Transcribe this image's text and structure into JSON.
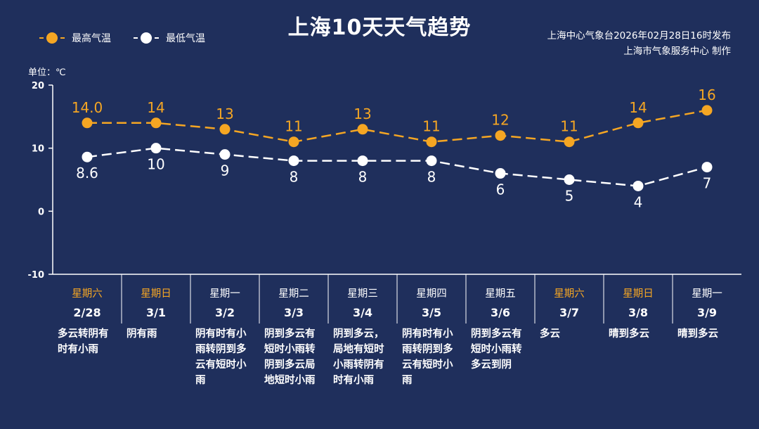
{
  "header": {
    "title": "上海10天天气趋势",
    "source_line1": "上海中心气象台2026年02月28日16时发布",
    "source_line2": "上海市气象服务中心 制作",
    "unit": "单位：℃"
  },
  "legend": [
    {
      "label": "最高气温",
      "color": "#f5a623"
    },
    {
      "label": "最低气温",
      "color": "#ffffff"
    }
  ],
  "colors": {
    "background": "#1f2f5c",
    "high": "#f5a623",
    "low": "#ffffff",
    "weekend": "#f5a623",
    "axis": "#ffffff"
  },
  "chart_data": {
    "type": "line",
    "ylim": [
      -10,
      20
    ],
    "yticks": [
      "20",
      "10",
      "0",
      "-10"
    ],
    "grid": false,
    "categories": [
      "2/28",
      "3/1",
      "3/2",
      "3/3",
      "3/4",
      "3/5",
      "3/6",
      "3/7",
      "3/8",
      "3/9"
    ],
    "series": [
      {
        "name": "最高气温",
        "values": [
          14.0,
          14,
          13,
          11,
          13,
          11,
          12,
          11,
          14,
          16
        ],
        "labels": [
          "14.0",
          "14",
          "13",
          "11",
          "13",
          "11",
          "12",
          "11",
          "14",
          "16"
        ]
      },
      {
        "name": "最低气温",
        "values": [
          8.6,
          10,
          9,
          8,
          8,
          8,
          6,
          5,
          4,
          7
        ],
        "labels": [
          "8.6",
          "10",
          "9",
          "8",
          "8",
          "8",
          "6",
          "5",
          "4",
          "7"
        ]
      }
    ]
  },
  "days": [
    {
      "weekday": "星期六",
      "date": "2/28",
      "weekend": true,
      "desc": "多云转阴有时有小雨"
    },
    {
      "weekday": "星期日",
      "date": "3/1",
      "weekend": true,
      "desc": "阴有雨"
    },
    {
      "weekday": "星期一",
      "date": "3/2",
      "weekend": false,
      "desc": "阴有时有小雨转阴到多云有短时小雨"
    },
    {
      "weekday": "星期二",
      "date": "3/3",
      "weekend": false,
      "desc": "阴到多云有短时小雨转阴到多云局地短时小雨"
    },
    {
      "weekday": "星期三",
      "date": "3/4",
      "weekend": false,
      "desc": "阴到多云，局地有短时小雨转阴有时有小雨"
    },
    {
      "weekday": "星期四",
      "date": "3/5",
      "weekend": false,
      "desc": "阴有时有小雨转阴到多云有短时小雨"
    },
    {
      "weekday": "星期五",
      "date": "3/6",
      "weekend": false,
      "desc": "阴到多云有短时小雨转多云到阴"
    },
    {
      "weekday": "星期六",
      "date": "3/7",
      "weekend": true,
      "desc": "多云"
    },
    {
      "weekday": "星期日",
      "date": "3/8",
      "weekend": true,
      "desc": "晴到多云"
    },
    {
      "weekday": "星期一",
      "date": "3/9",
      "weekend": false,
      "desc": "晴到多云"
    }
  ]
}
